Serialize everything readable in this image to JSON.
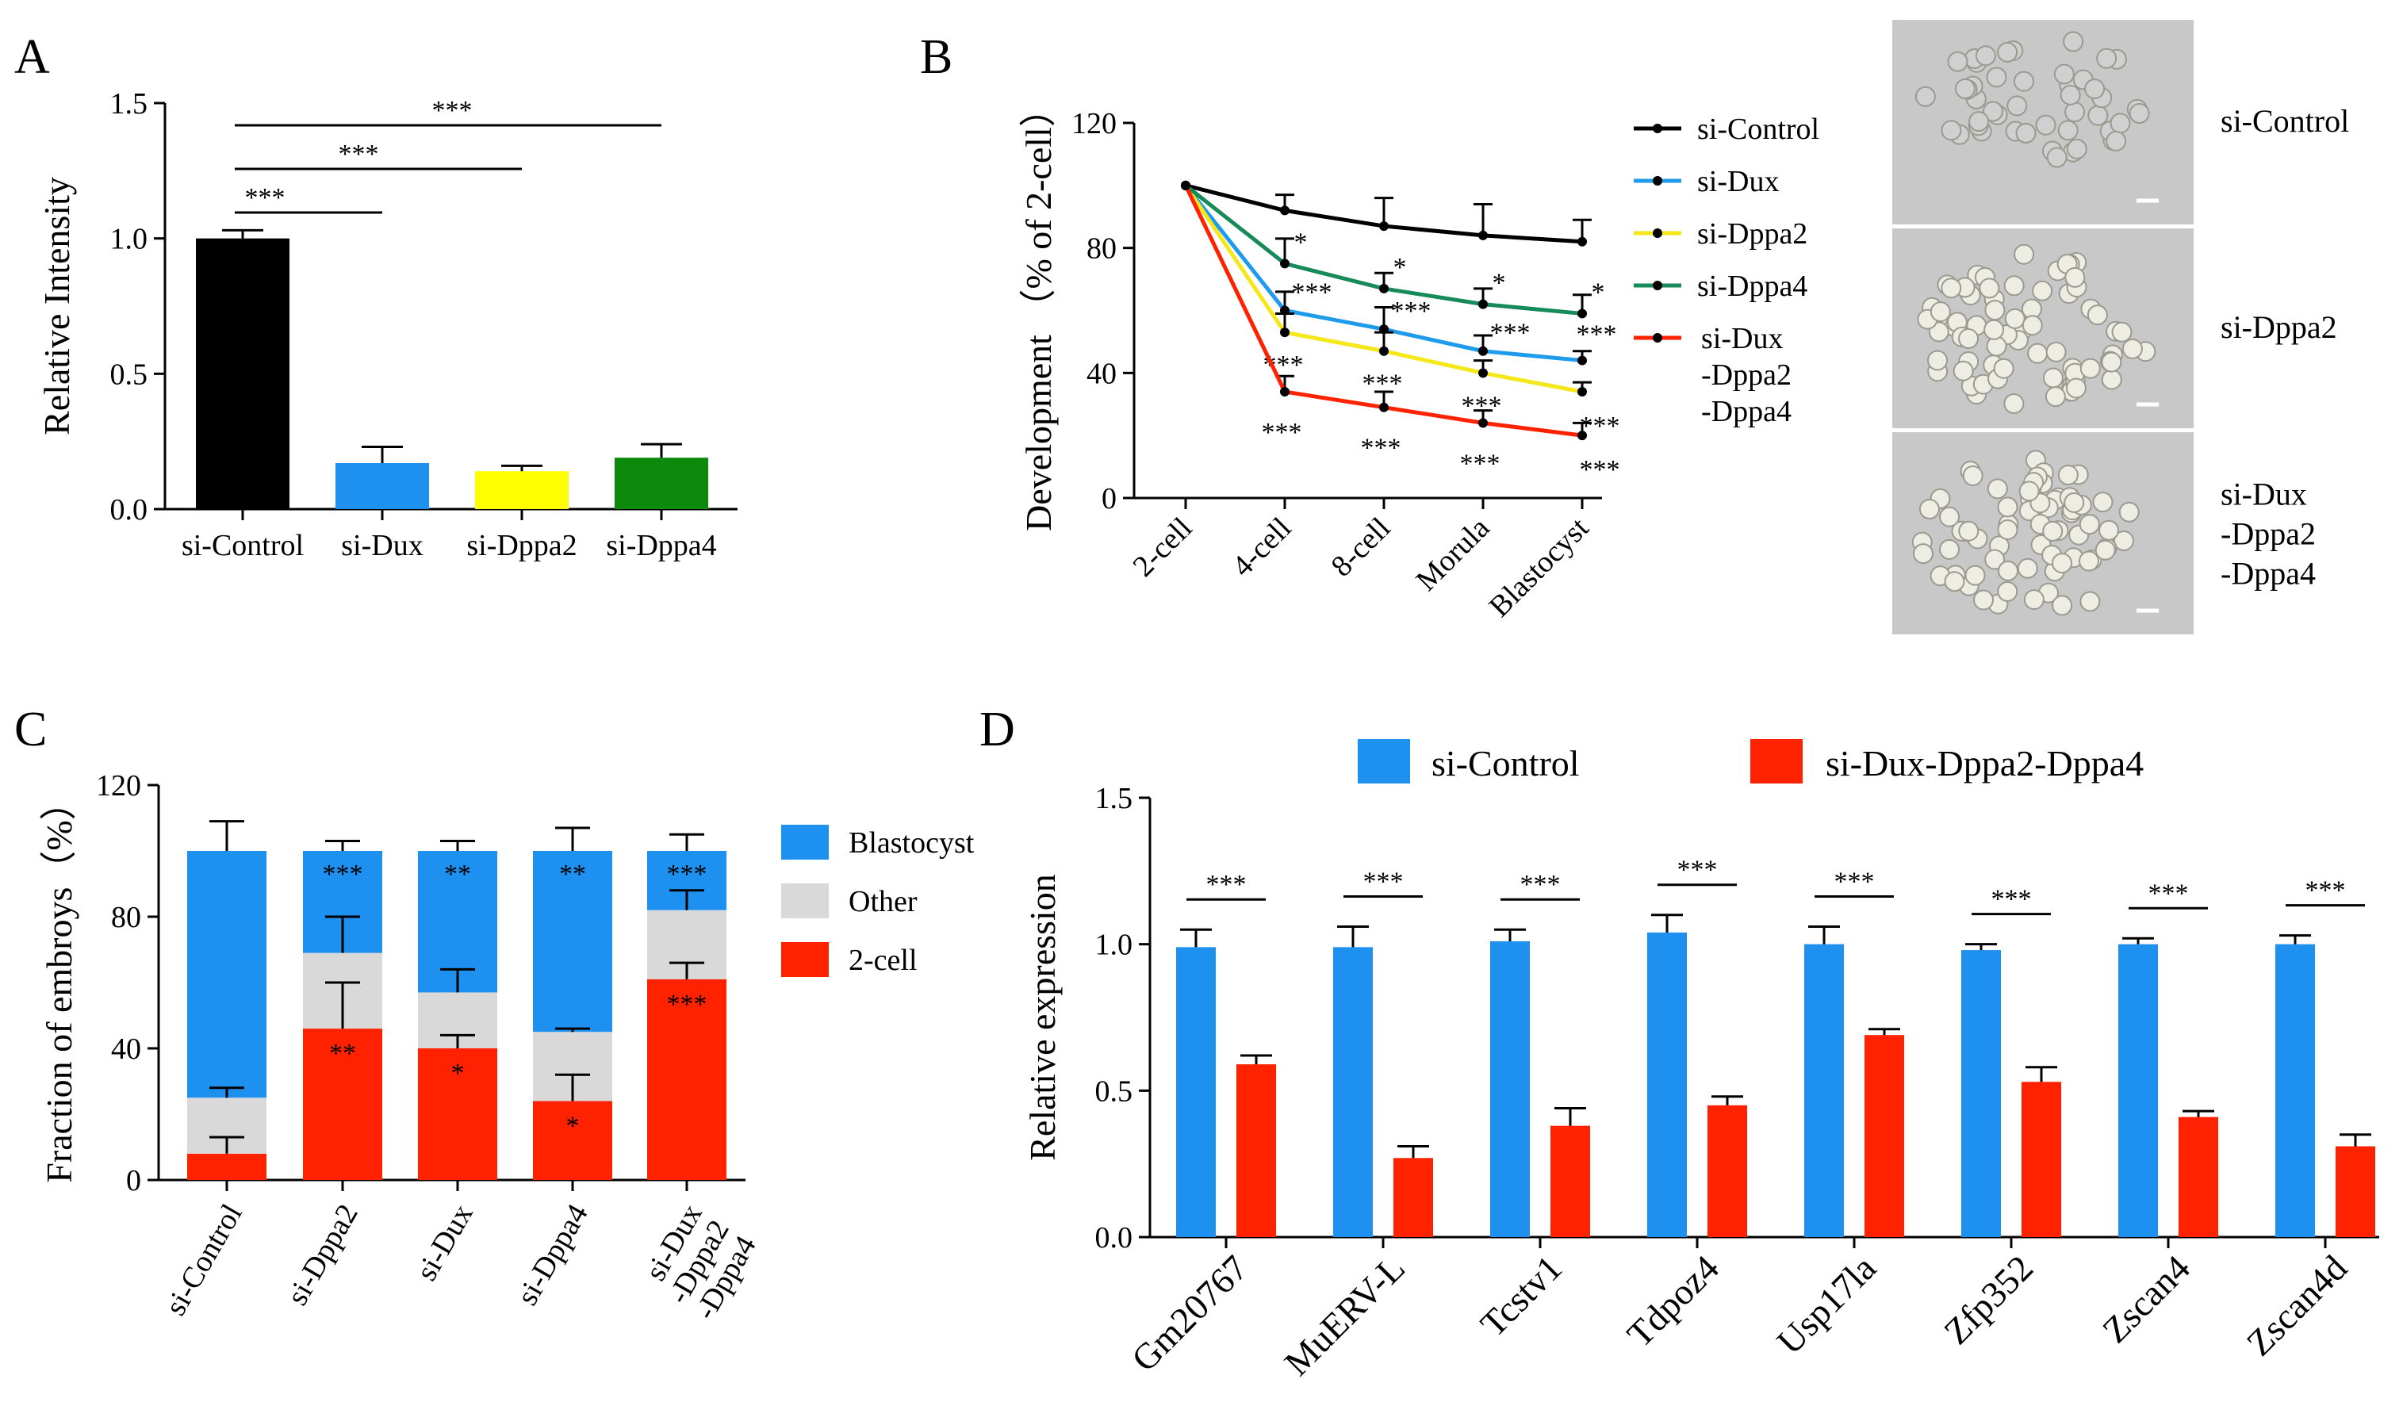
{
  "colors": {
    "black": "#000000",
    "blue": "#1E90F0",
    "yellow": "#FFFF00",
    "green": "#0B8A0B",
    "red": "#FF2200",
    "gray": "#D9D9D9",
    "teal": "#178A5A",
    "lineBlue": "#1E9BEB",
    "lineYellow": "#F5E71A",
    "error": "#000000",
    "photoBg": "#C8C8C8",
    "embryo": "#EDEDE4"
  },
  "panels": {
    "A": {
      "letter": "A"
    },
    "B": {
      "letter": "B"
    },
    "C": {
      "letter": "C"
    },
    "D": {
      "letter": "D"
    }
  },
  "chart_data": [
    {
      "id": "A",
      "type": "bar",
      "title": "",
      "xlabel": "",
      "ylabel": "Relative Intensity",
      "ylim": [
        0,
        1.5
      ],
      "yticks": [
        "0.0",
        "0.5",
        "1.0",
        "1.5"
      ],
      "yticksValues": [
        0,
        0.5,
        1.0,
        1.5
      ],
      "categories": [
        "si-Control",
        "si-Dux",
        "si-Dppa2",
        "si-Dppa4"
      ],
      "values": [
        1.0,
        0.17,
        0.14,
        0.19
      ],
      "errors": [
        0.03,
        0.06,
        0.02,
        0.05
      ],
      "colorKeys": [
        "black",
        "blue",
        "yellow",
        "green"
      ],
      "brackets": [
        {
          "from": 0,
          "to": 1,
          "label": "***"
        },
        {
          "from": 0,
          "to": 2,
          "label": "***"
        },
        {
          "from": 0,
          "to": 3,
          "label": "***"
        }
      ]
    },
    {
      "id": "B",
      "type": "line",
      "title": "",
      "xlabel": "",
      "ylabel": "Development （% of 2-cell）",
      "ylim": [
        0,
        120
      ],
      "yticks": [
        "0",
        "40",
        "80",
        "120"
      ],
      "yticksValues": [
        0,
        40,
        80,
        120
      ],
      "categories": [
        "2-cell",
        "4-cell",
        "8-cell",
        "Morula",
        "Blastocyst"
      ],
      "series": [
        {
          "name": "si-Control",
          "colorKey": "black",
          "marker": "circle",
          "values": [
            100,
            92,
            87,
            84,
            82
          ],
          "errors": [
            0,
            5,
            9,
            10,
            7
          ],
          "sig": [
            "",
            "",
            "",
            "",
            ""
          ]
        },
        {
          "name": "si-Dux",
          "colorKey": "lineBlue",
          "marker": "square",
          "values": [
            100,
            60,
            54,
            47,
            44
          ],
          "errors": [
            0,
            6,
            7,
            5,
            3
          ],
          "sig": [
            "",
            "***",
            "***",
            "***",
            "***"
          ]
        },
        {
          "name": "si-Dppa2",
          "colorKey": "lineYellow",
          "marker": "triangle",
          "values": [
            100,
            53,
            47,
            40,
            34
          ],
          "errors": [
            0,
            6,
            6,
            4,
            3
          ],
          "sig": [
            "",
            "***",
            "***",
            "***",
            "***"
          ]
        },
        {
          "name": "si-Dppa4",
          "colorKey": "teal",
          "marker": "diamond",
          "values": [
            100,
            75,
            67,
            62,
            59
          ],
          "errors": [
            0,
            8,
            5,
            5,
            6
          ],
          "sig": [
            "",
            "*",
            "*",
            "*",
            "*"
          ]
        },
        {
          "name_lines": [
            "si-Dux",
            "-Dppa2",
            "-Dppa4"
          ],
          "name": "si-Dux -Dppa2 -Dppa4",
          "colorKey": "red",
          "marker": "dot",
          "values": [
            100,
            34,
            29,
            24,
            20
          ],
          "errors": [
            0,
            5,
            5,
            4,
            4
          ],
          "sig": [
            "",
            "***",
            "***",
            "***",
            "***"
          ]
        }
      ]
    },
    {
      "id": "C",
      "type": "bar",
      "stacked": true,
      "title": "",
      "xlabel": "",
      "ylabel": "Fraction of embroys（%）",
      "ylim": [
        0,
        120
      ],
      "yticks": [
        "0",
        "40",
        "80",
        "120"
      ],
      "yticksValues": [
        0,
        40,
        80,
        120
      ],
      "categories": [
        "si-Control",
        "si-Dppa2",
        "si-Dux",
        "si-Dppa4",
        "si-Dux -Dppa2 -Dppa4"
      ],
      "category_lines": [
        [
          "si-Control"
        ],
        [
          "si-Dppa2"
        ],
        [
          "si-Dux"
        ],
        [
          "si-Dppa4"
        ],
        [
          "si-Dux",
          "-Dppa2",
          "-Dppa4"
        ]
      ],
      "series": [
        {
          "name": "2-cell",
          "colorKey": "red",
          "values": [
            8,
            46,
            40,
            24,
            61
          ],
          "errors": [
            5,
            14,
            4,
            8,
            5
          ],
          "sig": [
            "",
            "**",
            "*",
            "*",
            "***"
          ]
        },
        {
          "name": "Other",
          "colorKey": "gray",
          "values": [
            17,
            23,
            17,
            21,
            21
          ],
          "errors": [
            3,
            11,
            7,
            1,
            6
          ],
          "sig": [
            "",
            "",
            "",
            "",
            ""
          ]
        },
        {
          "name": "Blastocyst",
          "colorKey": "blue",
          "values": [
            75,
            31,
            43,
            55,
            18
          ],
          "errors": [
            9,
            3,
            3,
            7,
            5
          ],
          "sig": [
            "",
            "***",
            "**",
            "**",
            "***"
          ]
        }
      ],
      "legend": [
        "Blastocyst",
        "Other",
        "2-cell"
      ]
    },
    {
      "id": "D",
      "type": "bar",
      "title": "",
      "xlabel": "",
      "ylabel": "Relative expression",
      "ylim": [
        0,
        1.5
      ],
      "yticks": [
        "0.0",
        "0.5",
        "1.0",
        "1.5"
      ],
      "yticksValues": [
        0,
        0.5,
        1.0,
        1.5
      ],
      "categories": [
        "Gm20767",
        "MuERV-L",
        "Tcstv1",
        "Tdpoz4",
        "Usp17la",
        "Zfp352",
        "Zscan4",
        "Zscan4d"
      ],
      "series": [
        {
          "name": "si-Control",
          "colorKey": "blue",
          "values": [
            0.99,
            0.99,
            1.01,
            1.04,
            1.0,
            0.98,
            1.0,
            1.0
          ],
          "errors": [
            0.06,
            0.07,
            0.04,
            0.06,
            0.06,
            0.02,
            0.02,
            0.03
          ]
        },
        {
          "name": "si-Dux-Dppa2-Dppa4",
          "colorKey": "red",
          "values": [
            0.59,
            0.27,
            0.38,
            0.45,
            0.69,
            0.53,
            0.41,
            0.31
          ],
          "errors": [
            0.03,
            0.04,
            0.06,
            0.03,
            0.02,
            0.05,
            0.02,
            0.04
          ]
        }
      ],
      "sig": [
        "***",
        "***",
        "***",
        "***",
        "***",
        "***",
        "***",
        "***"
      ]
    }
  ],
  "photos": {
    "labels": [
      [
        "si-Control"
      ],
      [
        "si-Dppa2"
      ],
      [
        "si-Dux",
        "-Dppa2",
        "-Dppa4"
      ]
    ]
  }
}
